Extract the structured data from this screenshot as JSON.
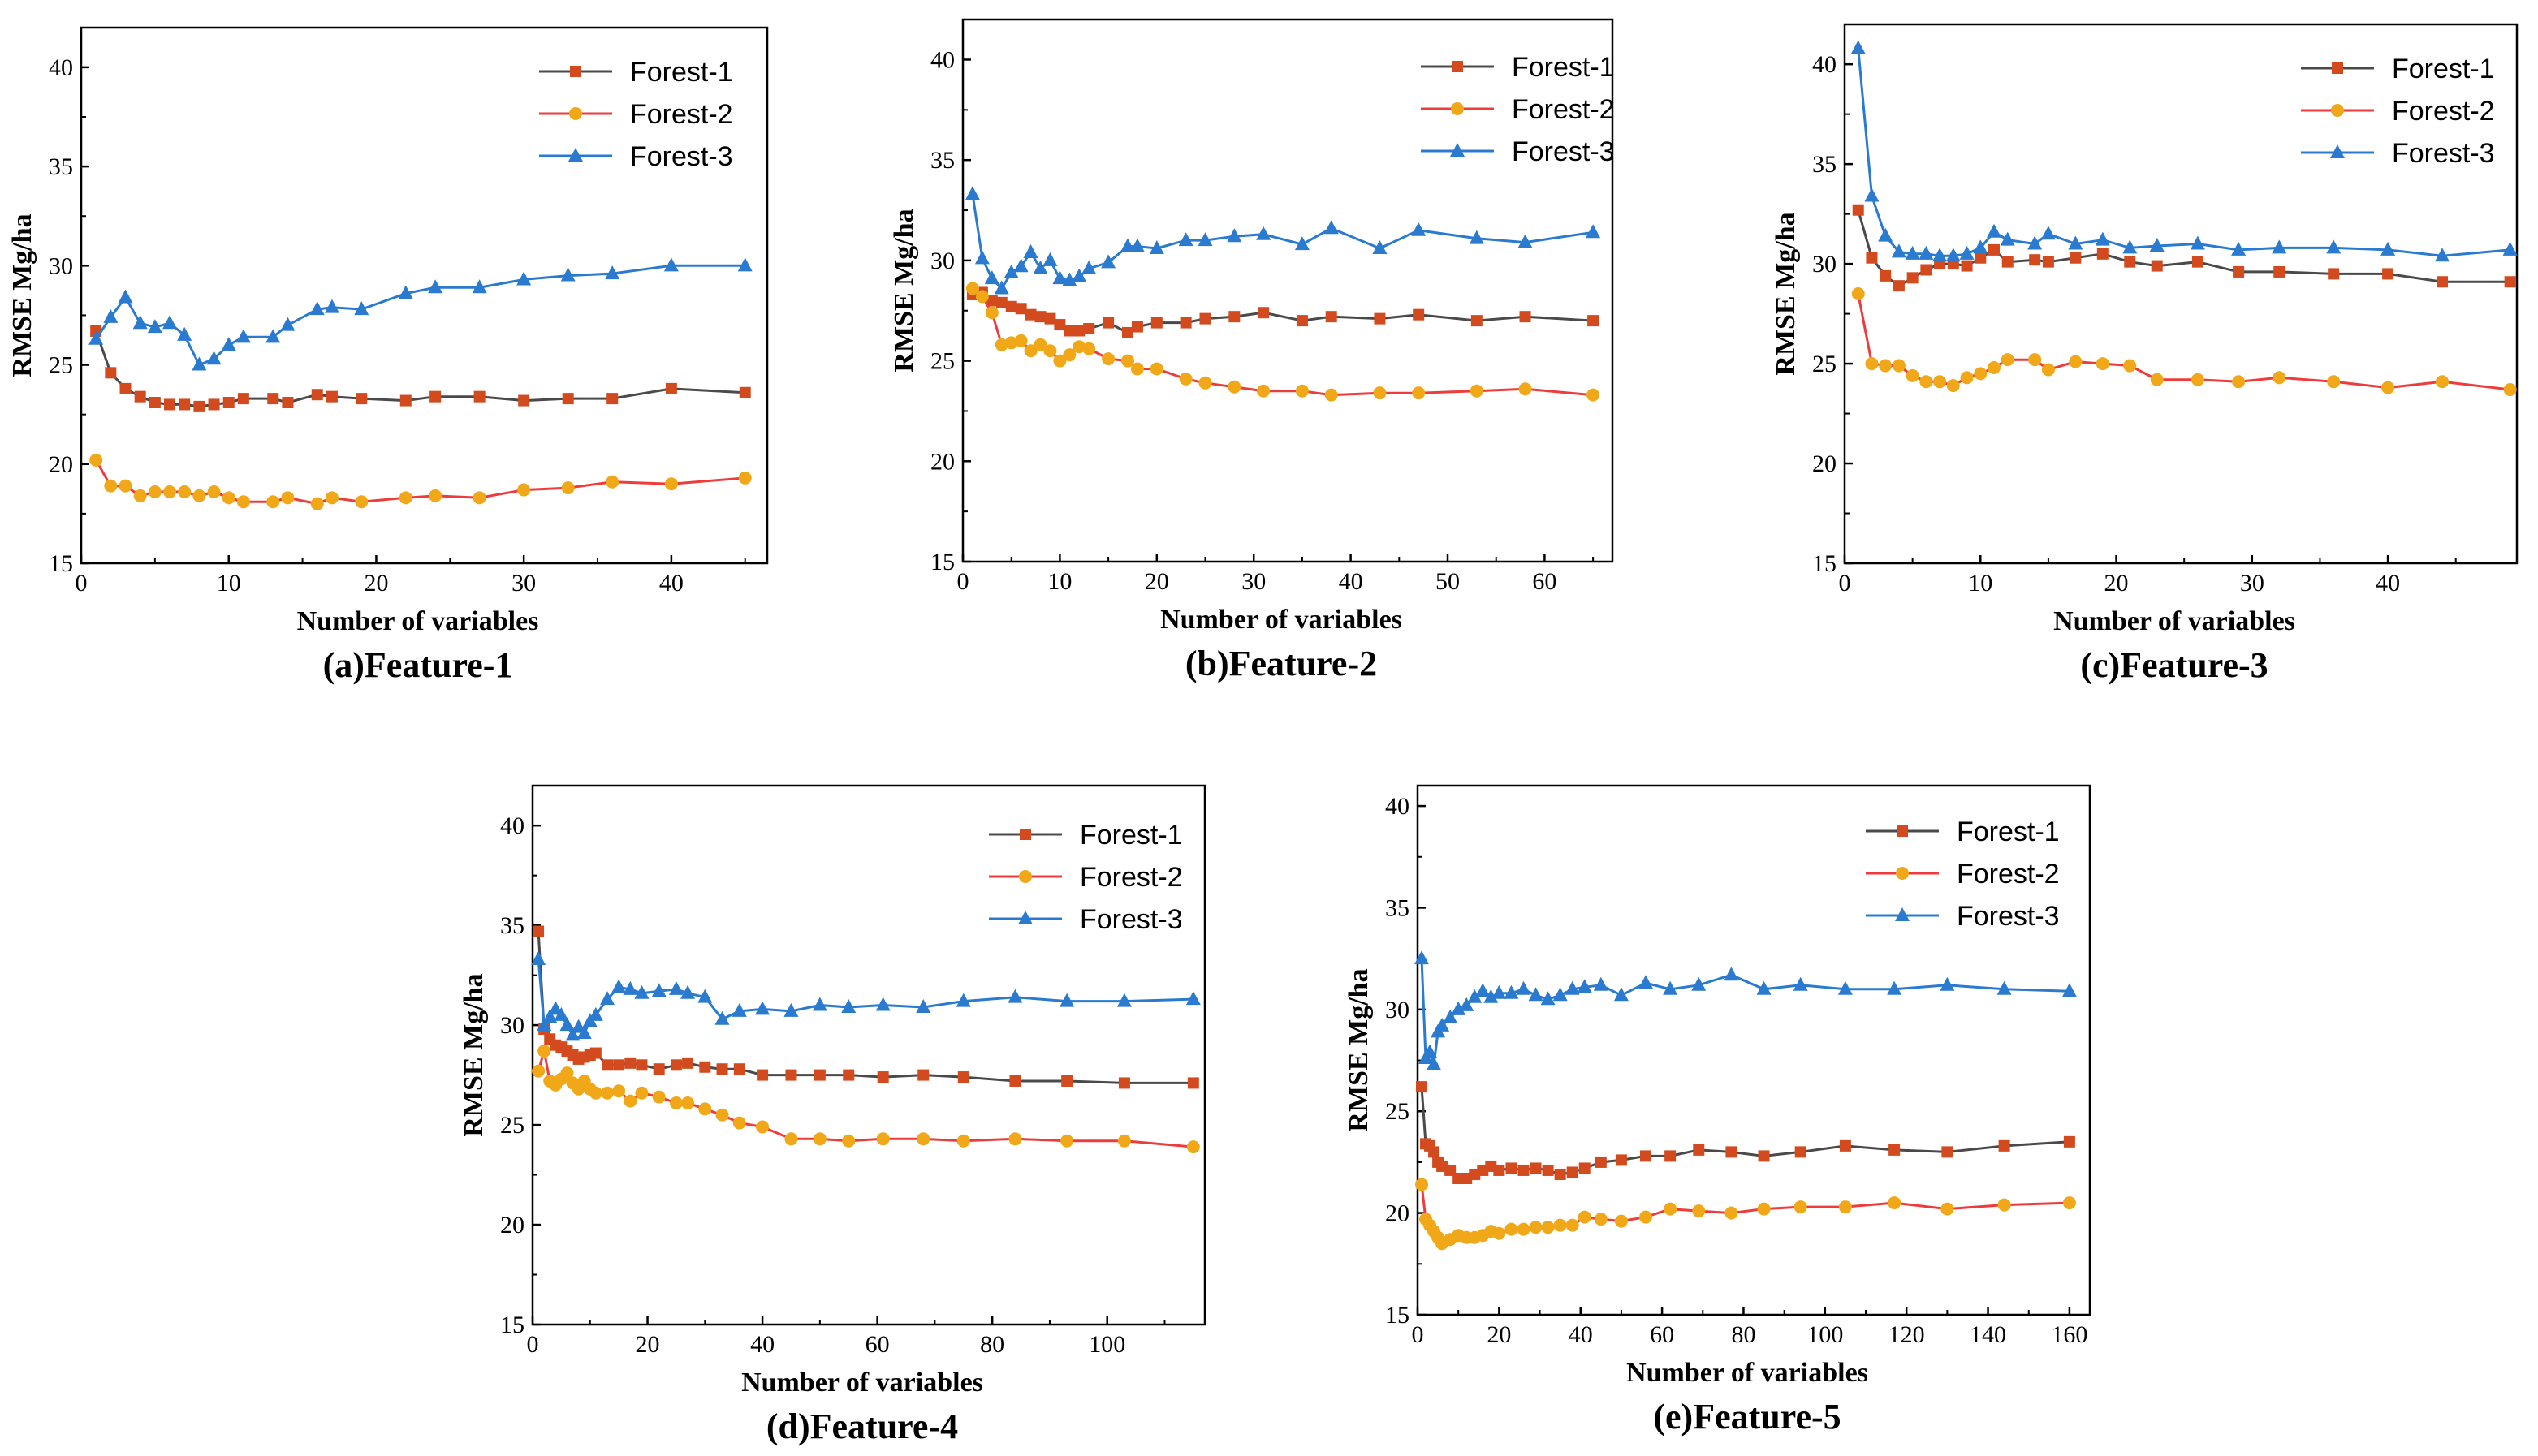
{
  "figure": {
    "colors": {
      "Forest-1": "#d24a1e",
      "Forest-1-line": "#4a4a4a",
      "Forest-2": "#f0a818",
      "Forest-2-line": "#ee3b3b",
      "Forest-3": "#2a7bd0",
      "Forest-3-line": "#2a7bd0"
    },
    "markers": {
      "Forest-1": "square",
      "Forest-2": "circle",
      "Forest-3": "triangle"
    }
  },
  "chart_data": [
    {
      "type": "line",
      "caption": "(a)Feature-1",
      "xlabel": "Number of variables",
      "ylabel": "RMSE Mg/ha",
      "xlim": [
        0,
        46.5
      ],
      "ylim": [
        15,
        42
      ],
      "xticks": [
        0,
        10,
        20,
        30,
        40
      ],
      "yticks": [
        15,
        20,
        25,
        30,
        35,
        40
      ],
      "legend": [
        "Forest-1",
        "Forest-2",
        "Forest-3"
      ],
      "legend_position": "top-right",
      "series": [
        {
          "name": "Forest-1",
          "x": [
            1,
            2,
            3,
            4,
            5,
            6,
            7,
            8,
            9,
            10,
            11,
            13,
            14,
            16,
            17,
            19,
            22,
            24,
            27,
            30,
            33,
            36,
            40,
            45
          ],
          "y": [
            26.7,
            24.6,
            23.8,
            23.4,
            23.1,
            23.0,
            23.0,
            22.9,
            23.0,
            23.1,
            23.3,
            23.3,
            23.1,
            23.5,
            23.4,
            23.3,
            23.2,
            23.4,
            23.4,
            23.2,
            23.3,
            23.3,
            23.8,
            23.6
          ]
        },
        {
          "name": "Forest-2",
          "x": [
            1,
            2,
            3,
            4,
            5,
            6,
            7,
            8,
            9,
            10,
            11,
            13,
            14,
            16,
            17,
            19,
            22,
            24,
            27,
            30,
            33,
            36,
            40,
            45
          ],
          "y": [
            20.2,
            18.9,
            18.9,
            18.4,
            18.6,
            18.6,
            18.6,
            18.4,
            18.6,
            18.3,
            18.1,
            18.1,
            18.3,
            18.0,
            18.3,
            18.1,
            18.3,
            18.4,
            18.3,
            18.7,
            18.8,
            19.1,
            19.0,
            19.3
          ]
        },
        {
          "name": "Forest-3",
          "x": [
            1,
            2,
            3,
            4,
            5,
            6,
            7,
            8,
            9,
            10,
            11,
            13,
            14,
            16,
            17,
            19,
            22,
            24,
            27,
            30,
            33,
            36,
            40,
            45
          ],
          "y": [
            26.3,
            27.4,
            28.4,
            27.1,
            26.9,
            27.1,
            26.5,
            25.0,
            25.3,
            26.0,
            26.4,
            26.4,
            27.0,
            27.8,
            27.9,
            27.8,
            28.6,
            28.9,
            28.9,
            29.3,
            29.5,
            29.6,
            30.0,
            30.0
          ]
        }
      ]
    },
    {
      "type": "line",
      "caption": "(b)Feature-2",
      "xlabel": "Number of variables",
      "ylabel": "RMSE Mg/ha",
      "xlim": [
        0,
        67
      ],
      "ylim": [
        15,
        42
      ],
      "xticks": [
        0,
        10,
        20,
        30,
        40,
        50,
        60
      ],
      "yticks": [
        15,
        20,
        25,
        30,
        35,
        40
      ],
      "legend": [
        "Forest-1",
        "Forest-2",
        "Forest-3"
      ],
      "legend_position": "top-right",
      "series": [
        {
          "name": "Forest-1",
          "x": [
            1,
            2,
            3,
            4,
            5,
            6,
            7,
            8,
            9,
            10,
            11,
            12,
            13,
            15,
            17,
            18,
            20,
            23,
            25,
            28,
            31,
            35,
            38,
            43,
            47,
            53,
            58,
            65
          ],
          "y": [
            28.3,
            28.4,
            28.0,
            27.9,
            27.7,
            27.6,
            27.3,
            27.2,
            27.1,
            26.8,
            26.5,
            26.5,
            26.6,
            26.9,
            26.4,
            26.7,
            26.9,
            26.9,
            27.1,
            27.2,
            27.4,
            27.0,
            27.2,
            27.1,
            27.3,
            27.0,
            27.2,
            27.0
          ]
        },
        {
          "name": "Forest-2",
          "x": [
            1,
            2,
            3,
            4,
            5,
            6,
            7,
            8,
            9,
            10,
            11,
            12,
            13,
            15,
            17,
            18,
            20,
            23,
            25,
            28,
            31,
            35,
            38,
            43,
            47,
            53,
            58,
            65
          ],
          "y": [
            28.6,
            28.2,
            27.4,
            25.8,
            25.9,
            26.0,
            25.5,
            25.8,
            25.5,
            25.0,
            25.3,
            25.7,
            25.6,
            25.1,
            25.0,
            24.6,
            24.6,
            24.1,
            23.9,
            23.7,
            23.5,
            23.5,
            23.3,
            23.4,
            23.4,
            23.5,
            23.6,
            23.3
          ]
        },
        {
          "name": "Forest-3",
          "x": [
            1,
            2,
            3,
            4,
            5,
            6,
            7,
            8,
            9,
            10,
            11,
            12,
            13,
            15,
            17,
            18,
            20,
            23,
            25,
            28,
            31,
            35,
            38,
            43,
            47,
            53,
            58,
            65
          ],
          "y": [
            33.3,
            30.1,
            29.1,
            28.6,
            29.4,
            29.7,
            30.4,
            29.6,
            30.0,
            29.1,
            29.0,
            29.2,
            29.6,
            29.9,
            30.7,
            30.7,
            30.6,
            31.0,
            31.0,
            31.2,
            31.3,
            30.8,
            31.6,
            30.6,
            31.5,
            31.1,
            30.9,
            31.4
          ]
        }
      ]
    },
    {
      "type": "line",
      "caption": "(c)Feature-3",
      "xlabel": "Number of variables",
      "ylabel": "RMSE Mg/ha",
      "xlim": [
        0,
        49.5
      ],
      "ylim": [
        15,
        42
      ],
      "xticks": [
        0,
        10,
        20,
        30,
        40
      ],
      "yticks": [
        15,
        20,
        25,
        30,
        35,
        40
      ],
      "legend": [
        "Forest-1",
        "Forest-2",
        "Forest-3"
      ],
      "legend_position": "top-right",
      "series": [
        {
          "name": "Forest-1",
          "x": [
            1,
            2,
            3,
            4,
            5,
            6,
            7,
            8,
            9,
            10,
            11,
            12,
            14,
            15,
            17,
            19,
            21,
            23,
            26,
            29,
            32,
            36,
            40,
            44,
            49
          ],
          "y": [
            32.7,
            30.3,
            29.4,
            28.9,
            29.3,
            29.7,
            30.0,
            30.0,
            29.9,
            30.3,
            30.7,
            30.1,
            30.2,
            30.1,
            30.3,
            30.5,
            30.1,
            29.9,
            30.1,
            29.6,
            29.6,
            29.5,
            29.5,
            29.1,
            29.1
          ]
        },
        {
          "name": "Forest-2",
          "x": [
            1,
            2,
            3,
            4,
            5,
            6,
            7,
            8,
            9,
            10,
            11,
            12,
            14,
            15,
            17,
            19,
            21,
            23,
            26,
            29,
            32,
            36,
            40,
            44,
            49
          ],
          "y": [
            28.5,
            25.0,
            24.9,
            24.9,
            24.4,
            24.1,
            24.1,
            23.9,
            24.3,
            24.5,
            24.8,
            25.2,
            25.2,
            24.7,
            25.1,
            25.0,
            24.9,
            24.2,
            24.2,
            24.1,
            24.3,
            24.1,
            23.8,
            24.1,
            23.7
          ]
        },
        {
          "name": "Forest-3",
          "x": [
            1,
            2,
            3,
            4,
            5,
            6,
            7,
            8,
            9,
            10,
            11,
            12,
            14,
            15,
            17,
            19,
            21,
            23,
            26,
            29,
            32,
            36,
            40,
            44,
            49
          ],
          "y": [
            40.8,
            33.4,
            31.4,
            30.6,
            30.5,
            30.5,
            30.4,
            30.4,
            30.5,
            30.8,
            31.6,
            31.2,
            31.0,
            31.5,
            31.0,
            31.2,
            30.8,
            30.9,
            31.0,
            30.7,
            30.8,
            30.8,
            30.7,
            30.4,
            30.7
          ]
        }
      ]
    },
    {
      "type": "line",
      "caption": "(d)Feature-4",
      "xlabel": "Number of variables",
      "ylabel": "RMSE Mg/ha",
      "xlim": [
        0,
        117
      ],
      "ylim": [
        15,
        42
      ],
      "xticks": [
        0,
        20,
        40,
        60,
        80,
        100
      ],
      "yticks": [
        15,
        20,
        25,
        30,
        35,
        40
      ],
      "legend": [
        "Forest-1",
        "Forest-2",
        "Forest-3"
      ],
      "legend_position": "top-right",
      "series": [
        {
          "name": "Forest-1",
          "x": [
            1,
            2,
            3,
            4,
            5,
            6,
            7,
            8,
            9,
            10,
            11,
            13,
            15,
            17,
            19,
            22,
            25,
            27,
            30,
            33,
            36,
            40,
            45,
            50,
            55,
            61,
            68,
            75,
            84,
            93,
            103,
            115
          ],
          "y": [
            34.7,
            29.8,
            29.3,
            29.0,
            28.9,
            28.7,
            28.5,
            28.3,
            28.4,
            28.5,
            28.6,
            28.0,
            28.0,
            28.1,
            28.0,
            27.8,
            28.0,
            28.1,
            27.9,
            27.8,
            27.8,
            27.5,
            27.5,
            27.5,
            27.5,
            27.4,
            27.5,
            27.4,
            27.2,
            27.2,
            27.1,
            27.1
          ]
        },
        {
          "name": "Forest-2",
          "x": [
            1,
            2,
            3,
            4,
            5,
            6,
            7,
            8,
            9,
            10,
            11,
            13,
            15,
            17,
            19,
            22,
            25,
            27,
            30,
            33,
            36,
            40,
            45,
            50,
            55,
            61,
            68,
            75,
            84,
            93,
            103,
            115
          ],
          "y": [
            27.7,
            28.7,
            27.2,
            27.0,
            27.3,
            27.6,
            27.1,
            26.8,
            27.2,
            26.8,
            26.6,
            26.6,
            26.7,
            26.2,
            26.6,
            26.4,
            26.1,
            26.1,
            25.8,
            25.5,
            25.1,
            24.9,
            24.3,
            24.3,
            24.2,
            24.3,
            24.3,
            24.2,
            24.3,
            24.2,
            24.2,
            23.9
          ]
        },
        {
          "name": "Forest-3",
          "x": [
            1,
            2,
            3,
            4,
            5,
            6,
            7,
            8,
            9,
            10,
            11,
            13,
            15,
            17,
            19,
            22,
            25,
            27,
            30,
            33,
            36,
            40,
            45,
            50,
            55,
            61,
            68,
            75,
            84,
            93,
            103,
            115
          ],
          "y": [
            33.3,
            30.0,
            30.4,
            30.8,
            30.5,
            30.0,
            29.5,
            29.9,
            29.6,
            30.2,
            30.5,
            31.3,
            31.9,
            31.8,
            31.6,
            31.7,
            31.8,
            31.6,
            31.4,
            30.3,
            30.7,
            30.8,
            30.7,
            31.0,
            30.9,
            31.0,
            30.9,
            31.2,
            31.4,
            31.2,
            31.2,
            31.3
          ]
        }
      ]
    },
    {
      "type": "line",
      "caption": "(e)Feature-5",
      "xlabel": "Number of variables",
      "ylabel": "RMSE Mg/ha",
      "xlim": [
        0,
        165
      ],
      "ylim": [
        15,
        41
      ],
      "xticks": [
        0,
        20,
        40,
        60,
        80,
        100,
        120,
        140,
        160
      ],
      "yticks": [
        15,
        20,
        25,
        30,
        35,
        40
      ],
      "legend": [
        "Forest-1",
        "Forest-2",
        "Forest-3"
      ],
      "legend_position": "top-right",
      "series": [
        {
          "name": "Forest-1",
          "x": [
            1,
            2,
            3,
            4,
            5,
            6,
            8,
            10,
            12,
            14,
            16,
            18,
            20,
            23,
            26,
            29,
            32,
            35,
            38,
            41,
            45,
            50,
            56,
            62,
            69,
            77,
            85,
            94,
            105,
            117,
            130,
            144,
            160
          ],
          "y": [
            26.2,
            23.4,
            23.3,
            23.0,
            22.5,
            22.3,
            22.1,
            21.7,
            21.7,
            21.9,
            22.1,
            22.3,
            22.1,
            22.2,
            22.1,
            22.2,
            22.1,
            21.9,
            22.0,
            22.2,
            22.5,
            22.6,
            22.8,
            22.8,
            23.1,
            23.0,
            22.8,
            23.0,
            23.3,
            23.1,
            23.0,
            23.3,
            23.5
          ]
        },
        {
          "name": "Forest-2",
          "x": [
            1,
            2,
            3,
            4,
            5,
            6,
            8,
            10,
            12,
            14,
            16,
            18,
            20,
            23,
            26,
            29,
            32,
            35,
            38,
            41,
            45,
            50,
            56,
            62,
            69,
            77,
            85,
            94,
            105,
            117,
            130,
            144,
            160
          ],
          "y": [
            21.4,
            19.7,
            19.4,
            19.1,
            18.8,
            18.5,
            18.7,
            18.9,
            18.8,
            18.8,
            18.9,
            19.1,
            19.0,
            19.2,
            19.2,
            19.3,
            19.3,
            19.4,
            19.4,
            19.8,
            19.7,
            19.6,
            19.8,
            20.2,
            20.1,
            20.0,
            20.2,
            20.3,
            20.3,
            20.5,
            20.2,
            20.4,
            20.5
          ]
        },
        {
          "name": "Forest-3",
          "x": [
            1,
            2,
            3,
            4,
            5,
            6,
            8,
            10,
            12,
            14,
            16,
            18,
            20,
            23,
            26,
            29,
            32,
            35,
            38,
            41,
            45,
            50,
            56,
            62,
            69,
            77,
            85,
            94,
            105,
            117,
            130,
            144,
            160
          ],
          "y": [
            32.5,
            27.6,
            27.9,
            27.3,
            28.9,
            29.2,
            29.6,
            30.0,
            30.2,
            30.6,
            30.9,
            30.6,
            30.8,
            30.8,
            31.0,
            30.7,
            30.5,
            30.7,
            31.0,
            31.1,
            31.2,
            30.7,
            31.3,
            31.0,
            31.2,
            31.7,
            31.0,
            31.2,
            31.0,
            31.0,
            31.2,
            31.0,
            30.9
          ]
        }
      ]
    }
  ]
}
